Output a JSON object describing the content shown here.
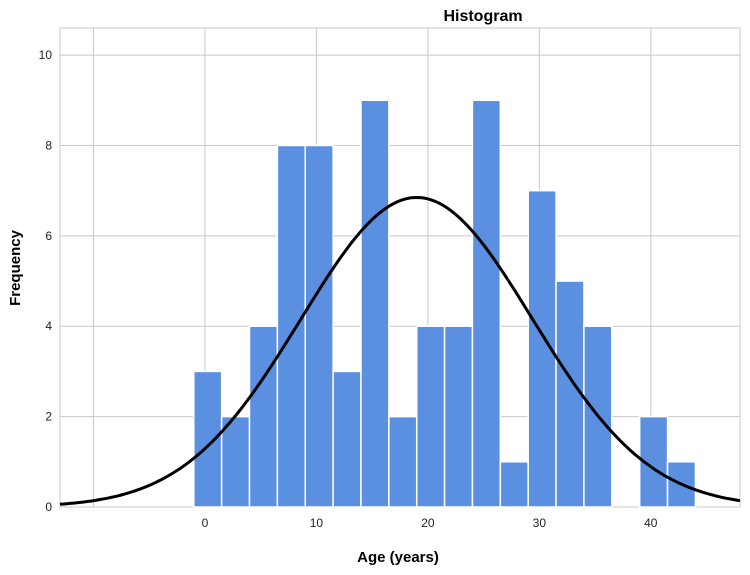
{
  "chart_data": {
    "type": "bar",
    "title": "Histogram",
    "xlabel": "Age (years)",
    "ylabel": "Frequency",
    "xlim": [
      -13,
      48
    ],
    "ylim": [
      0,
      10.6
    ],
    "xticks": [
      0,
      10,
      20,
      30,
      40
    ],
    "yticks": [
      0,
      2,
      4,
      6,
      8,
      10
    ],
    "grid": true,
    "bar_color": "#5b8fe0",
    "bar_edge_color": "#ffffff",
    "curve_color": "#000000",
    "bins": [
      {
        "start": -1,
        "end": 1.5,
        "count": 3
      },
      {
        "start": 1.5,
        "end": 4,
        "count": 2
      },
      {
        "start": 4,
        "end": 6.5,
        "count": 4
      },
      {
        "start": 6.5,
        "end": 9,
        "count": 8
      },
      {
        "start": 9,
        "end": 11.5,
        "count": 8
      },
      {
        "start": 11.5,
        "end": 14,
        "count": 3
      },
      {
        "start": 14,
        "end": 16.5,
        "count": 9
      },
      {
        "start": 16.5,
        "end": 19,
        "count": 2
      },
      {
        "start": 19,
        "end": 21.5,
        "count": 4
      },
      {
        "start": 21.5,
        "end": 24,
        "count": 4
      },
      {
        "start": 24,
        "end": 26.5,
        "count": 9
      },
      {
        "start": 26.5,
        "end": 29,
        "count": 1
      },
      {
        "start": 29,
        "end": 31.5,
        "count": 7
      },
      {
        "start": 31.5,
        "end": 34,
        "count": 5
      },
      {
        "start": 34,
        "end": 36.5,
        "count": 4
      },
      {
        "start": 36.5,
        "end": 39,
        "count": 0
      },
      {
        "start": 39,
        "end": 41.5,
        "count": 2
      },
      {
        "start": 41.5,
        "end": 44,
        "count": 1
      }
    ],
    "normal_curve": {
      "mean": 19,
      "sd": 10.4,
      "peak": 6.85
    }
  }
}
